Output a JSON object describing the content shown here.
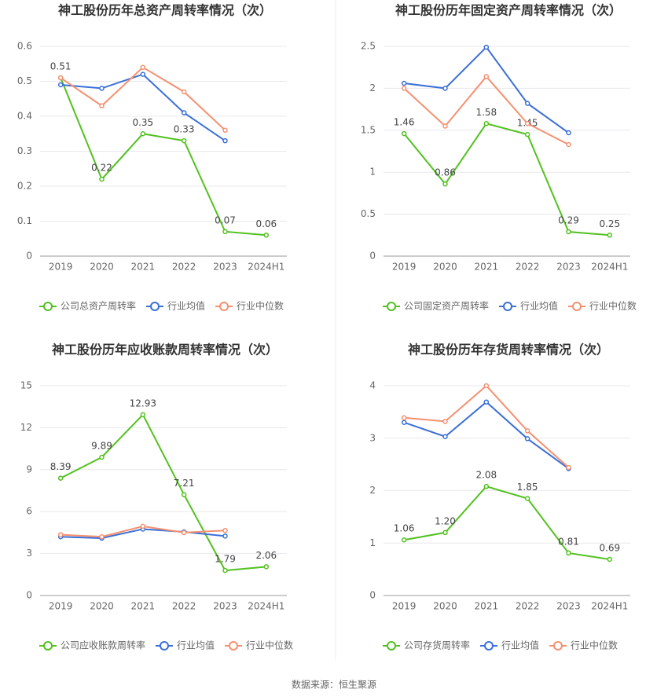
{
  "chart_data": [
    {
      "type": "line",
      "title": "神工股份历年总资产周转率情况（次）",
      "categories": [
        "2019",
        "2020",
        "2021",
        "2022",
        "2023",
        "2024H1"
      ],
      "ylim": [
        0,
        0.6
      ],
      "yticks": [
        0,
        0.1,
        0.2,
        0.3,
        0.4,
        0.5,
        0.6
      ],
      "grid": true,
      "series": [
        {
          "name": "公司总资产周转率",
          "color": "#52c11f",
          "values": [
            0.51,
            0.22,
            0.35,
            0.33,
            0.07,
            0.06
          ],
          "value_labels": [
            "0.51",
            "0.22",
            "0.35",
            "0.33",
            "0.07",
            "0.06"
          ]
        },
        {
          "name": "行业均值",
          "color": "#3a6fd8",
          "values": [
            0.49,
            0.48,
            0.52,
            0.41,
            0.33,
            null
          ]
        },
        {
          "name": "行业中位数",
          "color": "#f5906f",
          "values": [
            0.51,
            0.43,
            0.54,
            0.47,
            0.36,
            null
          ]
        }
      ]
    },
    {
      "type": "line",
      "title": "神工股份历年固定资产周转率情况（次）",
      "categories": [
        "2019",
        "2020",
        "2021",
        "2022",
        "2023",
        "2024H1"
      ],
      "ylim": [
        0,
        2.5
      ],
      "yticks": [
        0,
        0.5,
        1,
        1.5,
        2,
        2.5
      ],
      "grid": true,
      "series": [
        {
          "name": "公司固定资产周转率",
          "color": "#52c11f",
          "values": [
            1.46,
            0.86,
            1.58,
            1.45,
            0.29,
            0.25
          ],
          "value_labels": [
            "1.46",
            "0.86",
            "1.58",
            "1.45",
            "0.29",
            "0.25"
          ]
        },
        {
          "name": "行业均值",
          "color": "#3a6fd8",
          "values": [
            2.06,
            2.0,
            2.49,
            1.82,
            1.47,
            null
          ]
        },
        {
          "name": "行业中位数",
          "color": "#f5906f",
          "values": [
            2.0,
            1.55,
            2.14,
            1.58,
            1.33,
            null
          ]
        }
      ]
    },
    {
      "type": "line",
      "title": "神工股份历年应收账款周转率情况（次）",
      "categories": [
        "2019",
        "2020",
        "2021",
        "2022",
        "2023",
        "2024H1"
      ],
      "ylim": [
        0,
        15
      ],
      "yticks": [
        0,
        3,
        6,
        9,
        12,
        15
      ],
      "grid": true,
      "series": [
        {
          "name": "公司应收账款周转率",
          "color": "#52c11f",
          "values": [
            8.39,
            9.89,
            12.93,
            7.21,
            1.79,
            2.06
          ],
          "value_labels": [
            "8.39",
            "9.89",
            "12.93",
            "7.21",
            "1.79",
            "2.06"
          ]
        },
        {
          "name": "行业均值",
          "color": "#3a6fd8",
          "values": [
            4.2,
            4.1,
            4.75,
            4.55,
            4.25,
            null
          ]
        },
        {
          "name": "行业中位数",
          "color": "#f5906f",
          "values": [
            4.35,
            4.2,
            4.95,
            4.5,
            4.65,
            null
          ]
        }
      ]
    },
    {
      "type": "line",
      "title": "神工股份历年存货周转率情况（次）",
      "categories": [
        "2019",
        "2020",
        "2021",
        "2022",
        "2023",
        "2024H1"
      ],
      "ylim": [
        0,
        4
      ],
      "yticks": [
        0,
        1,
        2,
        3,
        4
      ],
      "grid": true,
      "series": [
        {
          "name": "公司存货周转率",
          "color": "#52c11f",
          "values": [
            1.06,
            1.2,
            2.08,
            1.85,
            0.81,
            0.69
          ],
          "value_labels": [
            "1.06",
            "1.20",
            "2.08",
            "1.85",
            "0.81",
            "0.69"
          ]
        },
        {
          "name": "行业均值",
          "color": "#3a6fd8",
          "values": [
            3.3,
            3.03,
            3.69,
            2.99,
            2.42,
            null
          ]
        },
        {
          "name": "行业中位数",
          "color": "#f5906f",
          "values": [
            3.39,
            3.32,
            4.0,
            3.14,
            2.44,
            null
          ]
        }
      ]
    }
  ],
  "source": "数据来源：恒生聚源"
}
